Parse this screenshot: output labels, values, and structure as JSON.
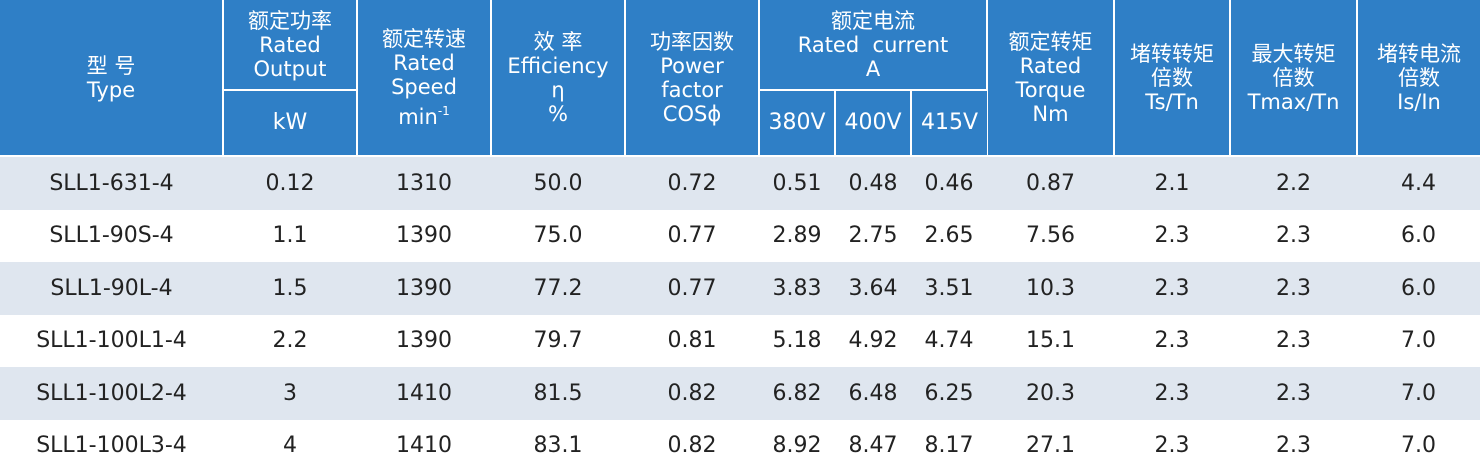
{
  "header": {
    "type": {
      "cn": "型 号",
      "en": "Type"
    },
    "rated_output": {
      "cn": "额定功率",
      "en1": "Rated",
      "en2": "Output",
      "unit": "kW"
    },
    "rated_speed": {
      "cn": "额定转速",
      "en1": "Rated",
      "en2": "Speed",
      "unit": "min",
      "unit_sup": "-1"
    },
    "efficiency": {
      "cn": "效 率",
      "en": "Efficiency",
      "sym": "η",
      "unit": "%"
    },
    "power_factor": {
      "cn": "功率因数",
      "en1": "Power",
      "en2": "factor",
      "unit": "COSϕ"
    },
    "rated_current": {
      "cn": "额定电流",
      "en": "Rated  current",
      "unit": "A",
      "voltages": [
        "380V",
        "400V",
        "415V"
      ]
    },
    "rated_torque": {
      "cn": "额定转矩",
      "en1": "Rated",
      "en2": "Torque",
      "unit": "Nm"
    },
    "locked_torque": {
      "cn1": "堵转转矩",
      "cn2": "倍数",
      "unit": "Ts/Tn"
    },
    "max_torque": {
      "cn1": "最大转矩",
      "cn2": "倍数",
      "unit": "Tmax/Tn"
    },
    "locked_current": {
      "cn1": "堵转电流",
      "cn2": "倍数",
      "unit": "Is/In"
    }
  },
  "rows": [
    {
      "type": "SLL1-631-4",
      "output": "0.12",
      "speed": "1310",
      "eff": "50.0",
      "pf": "0.72",
      "i380": "0.51",
      "i400": "0.48",
      "i415": "0.46",
      "torque": "0.87",
      "ts": "2.1",
      "tmax": "2.2",
      "is": "4.4"
    },
    {
      "type": "SLL1-90S-4",
      "output": "1.1",
      "speed": "1390",
      "eff": "75.0",
      "pf": "0.77",
      "i380": "2.89",
      "i400": "2.75",
      "i415": "2.65",
      "torque": "7.56",
      "ts": "2.3",
      "tmax": "2.3",
      "is": "6.0"
    },
    {
      "type": "SLL1-90L-4",
      "output": "1.5",
      "speed": "1390",
      "eff": "77.2",
      "pf": "0.77",
      "i380": "3.83",
      "i400": "3.64",
      "i415": "3.51",
      "torque": "10.3",
      "ts": "2.3",
      "tmax": "2.3",
      "is": "6.0"
    },
    {
      "type": "SLL1-100L1-4",
      "output": "2.2",
      "speed": "1390",
      "eff": "79.7",
      "pf": "0.81",
      "i380": "5.18",
      "i400": "4.92",
      "i415": "4.74",
      "torque": "15.1",
      "ts": "2.3",
      "tmax": "2.3",
      "is": "7.0"
    },
    {
      "type": "SLL1-100L2-4",
      "output": "3",
      "speed": "1410",
      "eff": "81.5",
      "pf": "0.82",
      "i380": "6.82",
      "i400": "6.48",
      "i415": "6.25",
      "torque": "20.3",
      "ts": "2.3",
      "tmax": "2.3",
      "is": "7.0"
    },
    {
      "type": "SLL1-100L3-4",
      "output": "4",
      "speed": "1410",
      "eff": "83.1",
      "pf": "0.82",
      "i380": "8.92",
      "i400": "8.47",
      "i415": "8.17",
      "torque": "27.1",
      "ts": "2.3",
      "tmax": "2.3",
      "is": "7.0"
    }
  ]
}
